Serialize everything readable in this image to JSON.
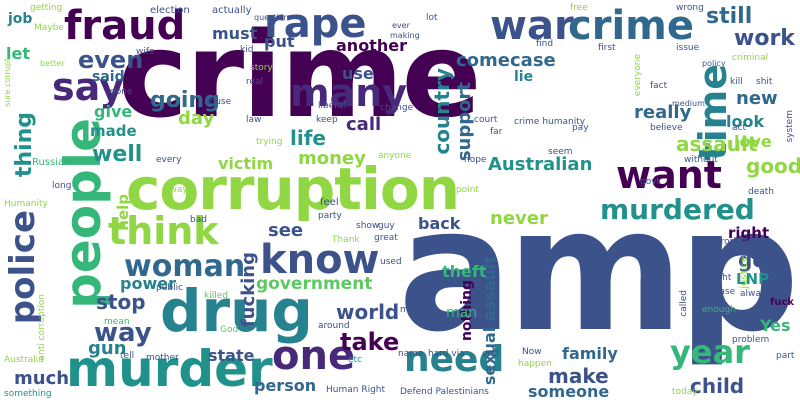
{
  "words": {
    "crime_big": "crime",
    "amp": "amp",
    "corruption": "corruption",
    "drug": "drug",
    "murder": "murder",
    "people": "people",
    "fraud": "fraud",
    "rape": "rape",
    "war": "war",
    "crime_small": "crime",
    "say": "say",
    "many": "many",
    "going": "going",
    "day": "day",
    "know": "know",
    "woman": "woman",
    "think": "think",
    "want": "want",
    "murdered": "murdered",
    "police": "police",
    "one": "one",
    "need": "need",
    "year": "year",
    "time": "time",
    "work": "work",
    "still": "still",
    "government": "government",
    "world": "world",
    "take": "take",
    "state": "state",
    "person": "person",
    "much": "much",
    "way": "way",
    "stop": "stop",
    "gun": "gun",
    "power": "power",
    "even": "even",
    "let": "let",
    "job": "job",
    "give": "give",
    "made": "made",
    "well": "well",
    "thing": "thing",
    "life": "life",
    "call": "call",
    "country": "country",
    "support": "support",
    "come": "come",
    "case": "case",
    "lie": "lie",
    "another": "another",
    "use": "use",
    "must": "must",
    "put": "put",
    "new": "new",
    "look": "look",
    "love": "love",
    "really": "really",
    "assault": "assault",
    "good": "good",
    "got": "got",
    "right": "right",
    "LNP": "LNP",
    "Yes": "Yes",
    "child": "child",
    "family": "family",
    "make": "make",
    "someone": "someone",
    "sexual_assault": "sexual assault",
    "nothing": "nothing",
    "theft": "theft",
    "never": "never",
    "back": "back",
    "see": "see",
    "fucking": "fucking",
    "victim": "victim",
    "money": "money",
    "Australian": "Australian",
    "help": "help",
    "said": "said",
    "better": "better",
    "sure_corrupt": "sure corrupt",
    "Russian": "Russian",
    "Humanity": "Humanity",
    "anti_corruption": "anti corruption",
    "Australia": "Australia",
    "something": "something",
    "mother": "mother",
    "tell": "tell",
    "God": "God",
    "killed": "killed",
    "public": "public",
    "mean": "mean",
    "Human_Right": "Human Right",
    "Defend_Palestinians": "Defend Palestinians",
    "etc": "etc",
    "name": "name",
    "hard_via": "hard via",
    "end": "end",
    "Now": "Now",
    "happen": "happen",
    "today": "today",
    "problem": "problem",
    "part": "part",
    "always": "always",
    "fuck": "fuck",
    "justice": "justice",
    "Please": "Please",
    "thought": "thought",
    "jail": "jail",
    "enough": "enough",
    "called": "called",
    "terrorism": "terrorism",
    "death": "death",
    "without": "without",
    "govt": "govt",
    "point": "point",
    "feel": "feel",
    "party": "party",
    "show": "show",
    "guy": "guy",
    "great": "great",
    "bad": "bad",
    "Thank": "Thank",
    "used": "used",
    "around": "around",
    "might": "might",
    "man": "man",
    "hope": "hope",
    "anyone": "anyone",
    "seem": "seem",
    "every": "every",
    "away": "away",
    "long": "long",
    "abuse": "abuse",
    "trying": "trying",
    "kid": "kid",
    "real": "real",
    "law": "law",
    "keep": "keep",
    "actually": "actually",
    "election": "election",
    "getting": "getting",
    "Maybe": "Maybe",
    "question": "question",
    "lot": "lot",
    "free": "free",
    "wrong": "wrong",
    "first": "first",
    "find": "find",
    "issue": "issue",
    "criminal": "criminal",
    "fact": "fact",
    "kill": "kill",
    "shit": "shit",
    "believe": "believe",
    "act": "act",
    "system": "system",
    "pay": "pay",
    "far": "far",
    "crime_humanity": "crime humanity",
    "court": "court",
    "change": "change",
    "done": "done",
    "story": "story",
    "wife": "wife",
    "liberal": "liberal",
    "making": "making",
    "ever": "ever",
    "everyone": "everyone",
    "policy": "policy",
    "medium": "medium"
  },
  "colors": {
    "dark_purple": "#440154",
    "blue": "#3b528b",
    "teal": "#21918c",
    "green": "#5ec962",
    "yellow": "#fde725"
  }
}
